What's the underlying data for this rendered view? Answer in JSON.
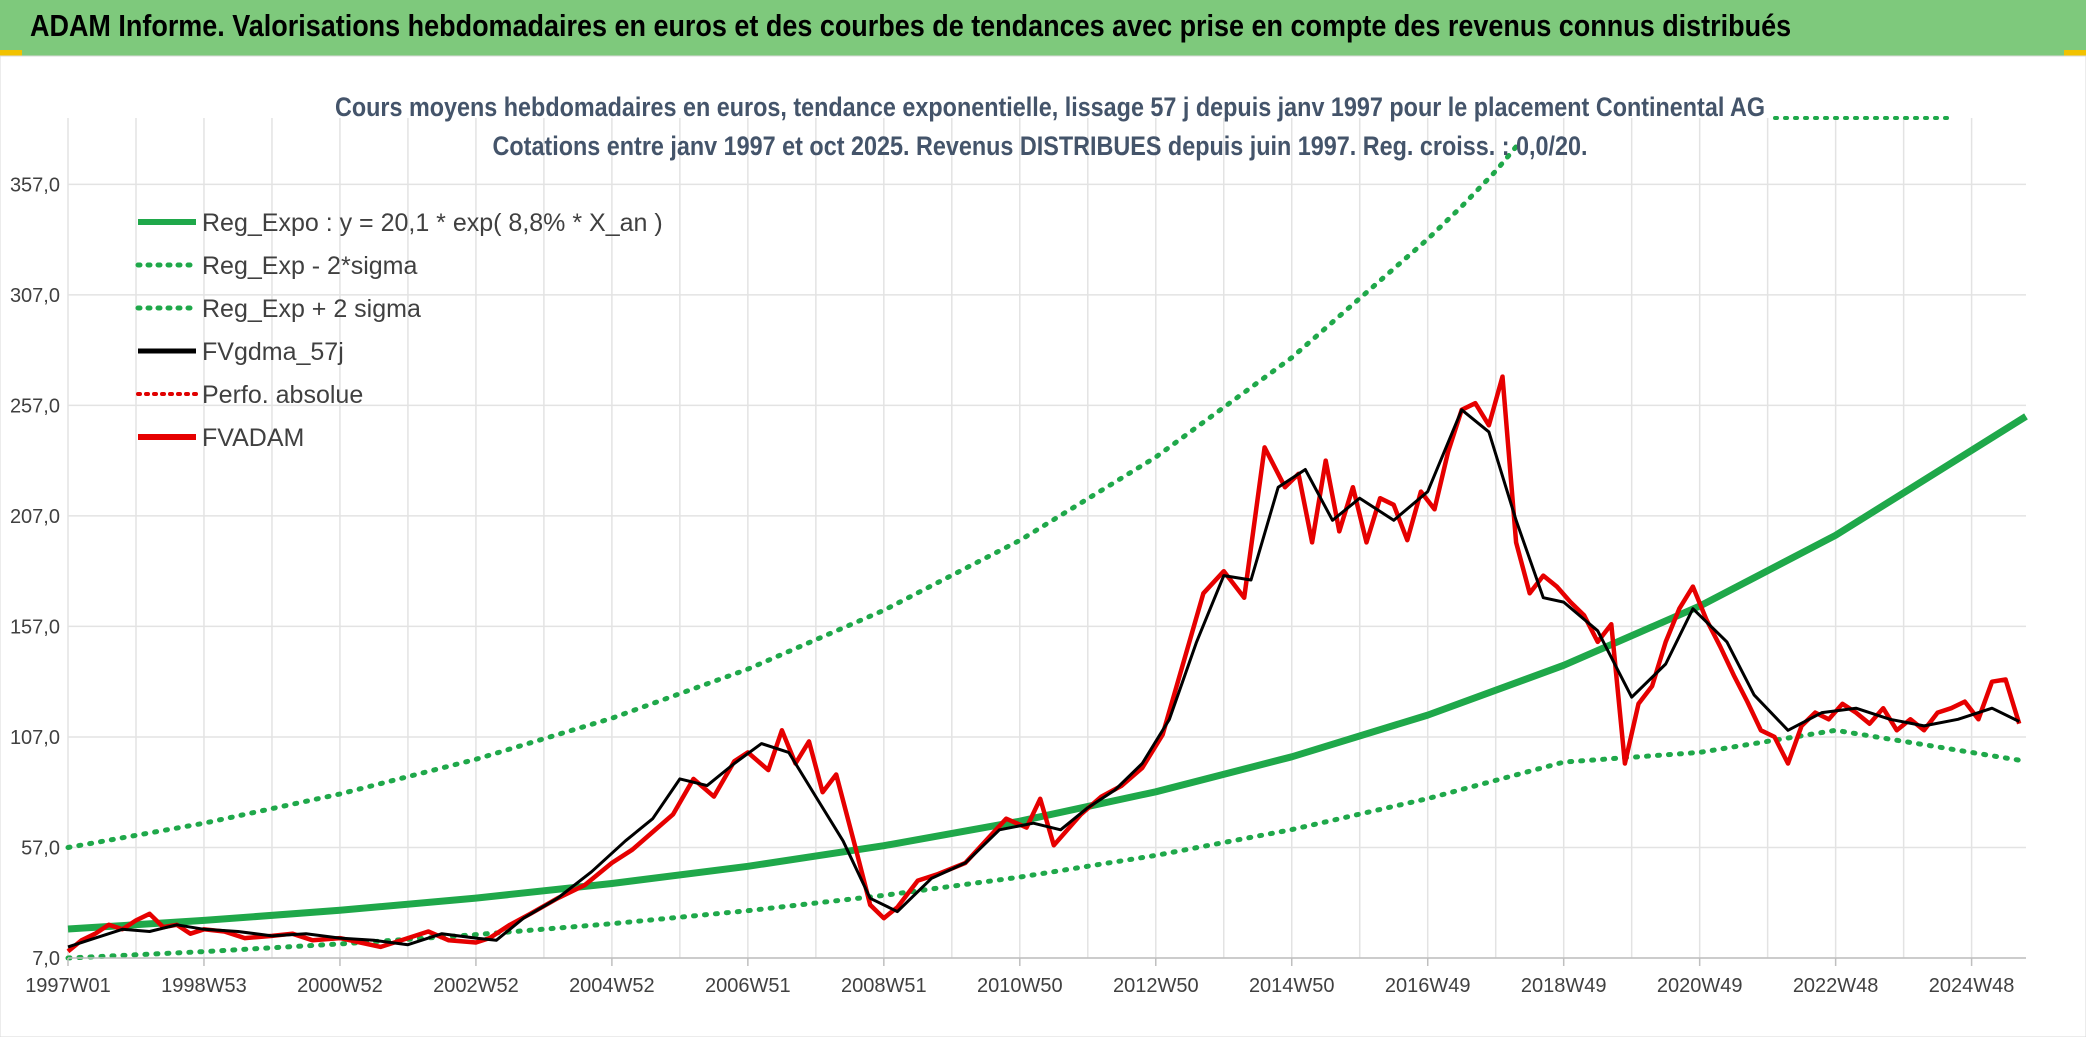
{
  "header": {
    "title": "ADAM Informe. Valorisations hebdomadaires en euros et des courbes de tendances avec prise en compte des revenus connus distribués"
  },
  "chart_data": {
    "type": "line",
    "title": "Cours moyens hebdomadaires en euros, tendance exponentielle, lissage 57 j depuis janv 1997 pour le placement Continental AG",
    "subtitle": "Cotations entre janv 1997 et oct 2025. Revenus DISTRIBUES depuis juin 1997. Reg. croiss. : 0,0/20.",
    "xlabel": "",
    "ylabel": "",
    "xlim": [
      1997.0,
      2025.8
    ],
    "ylim": [
      7,
      387
    ],
    "grid": true,
    "legend_position": "top-left",
    "x_ticks": [
      {
        "x": 1997.0,
        "label": "1997W01"
      },
      {
        "x": 1999.0,
        "label": "1998W53"
      },
      {
        "x": 2001.0,
        "label": "2000W52"
      },
      {
        "x": 2003.0,
        "label": "2002W52"
      },
      {
        "x": 2005.0,
        "label": "2004W52"
      },
      {
        "x": 2007.0,
        "label": "2006W51"
      },
      {
        "x": 2009.0,
        "label": "2008W51"
      },
      {
        "x": 2011.0,
        "label": "2010W50"
      },
      {
        "x": 2013.0,
        "label": "2012W50"
      },
      {
        "x": 2015.0,
        "label": "2014W50"
      },
      {
        "x": 2017.0,
        "label": "2016W49"
      },
      {
        "x": 2019.0,
        "label": "2018W49"
      },
      {
        "x": 2021.0,
        "label": "2020W49"
      },
      {
        "x": 2023.0,
        "label": "2022W48"
      },
      {
        "x": 2025.0,
        "label": "2024W48"
      }
    ],
    "y_ticks": [
      {
        "y": 7,
        "label": "7,0"
      },
      {
        "y": 57,
        "label": "57,0"
      },
      {
        "y": 107,
        "label": "107,0"
      },
      {
        "y": 157,
        "label": "157,0"
      },
      {
        "y": 207,
        "label": "207,0"
      },
      {
        "y": 257,
        "label": "257,0"
      },
      {
        "y": 307,
        "label": "307,0"
      },
      {
        "y": 357,
        "label": "357,0"
      }
    ],
    "legend": [
      {
        "key": "reg",
        "label": "Reg_Expo : y = 20,1 * exp( 8,8% *  X_an )"
      },
      {
        "key": "lo",
        "label": "Reg_Exp - 2*sigma"
      },
      {
        "key": "hi",
        "label": "Reg_Exp + 2 sigma"
      },
      {
        "key": "ma",
        "label": "FVgdma_57j"
      },
      {
        "key": "perf",
        "label": "Perfo. absolue"
      },
      {
        "key": "price",
        "label": "FVADAM"
      }
    ],
    "series": [
      {
        "key": "reg",
        "name": "Reg_Expo : y = 20,1 * exp( 8,8% *  X_an )",
        "color": "#1fa84a",
        "style": "solid",
        "x": [
          1997,
          1999,
          2001,
          2003,
          2005,
          2007,
          2009,
          2011,
          2013,
          2015,
          2017,
          2019,
          2021,
          2023,
          2025.8
        ],
        "y": [
          20.1,
          24.0,
          28.6,
          34.1,
          40.7,
          48.5,
          57.8,
          68.9,
          82.2,
          98.0,
          116.9,
          139.4,
          166.2,
          198.2,
          252.0
        ]
      },
      {
        "key": "lo",
        "name": "Reg_Exp - 2*sigma",
        "color": "#1fa84a",
        "style": "dotted",
        "x": [
          1997,
          1999,
          2001,
          2003,
          2005,
          2007,
          2009,
          2011,
          2013,
          2015,
          2017,
          2019,
          2021,
          2023,
          2025.8
        ],
        "y": [
          7.0,
          9.9,
          13.4,
          17.6,
          22.5,
          28.4,
          35.3,
          43.6,
          53.4,
          65.1,
          79.1,
          95.6,
          100.0,
          110.0,
          96.0
        ]
      },
      {
        "key": "hi",
        "name": "Reg_Exp + 2 sigma",
        "color": "#1fa84a",
        "style": "dotted",
        "x": [
          1997,
          1999,
          2001,
          2003,
          2005,
          2007,
          2009,
          2011,
          2013,
          2015,
          2017,
          2017.5,
          2018.0,
          2018.3
        ],
        "y": [
          57.0,
          68.0,
          81.2,
          96.9,
          115.5,
          137.7,
          164.3,
          195.9,
          233.6,
          278.6,
          332.2,
          347.0,
          363.0,
          374.0
        ]
      },
      {
        "key": "ma",
        "name": "FVgdma_57j",
        "color": "#000000",
        "style": "solid",
        "x": [
          1997.0,
          1997.4,
          1997.8,
          1998.2,
          1998.6,
          1999.0,
          1999.5,
          2000.0,
          2000.5,
          2001.0,
          2001.5,
          2002.0,
          2002.5,
          2003.0,
          2003.3,
          2003.7,
          2004.2,
          2004.7,
          2005.2,
          2005.6,
          2006.0,
          2006.4,
          2006.8,
          2007.2,
          2007.6,
          2008.0,
          2008.4,
          2008.8,
          2009.2,
          2009.7,
          2010.2,
          2010.7,
          2011.2,
          2011.6,
          2012.0,
          2012.4,
          2012.8,
          2013.2,
          2013.6,
          2014.0,
          2014.4,
          2014.8,
          2015.2,
          2015.6,
          2016.0,
          2016.5,
          2017.0,
          2017.5,
          2017.9,
          2018.3,
          2018.7,
          2019.0,
          2019.5,
          2020.0,
          2020.5,
          2020.9,
          2021.4,
          2021.8,
          2022.3,
          2022.8,
          2023.3,
          2023.8,
          2024.3,
          2024.8,
          2025.3,
          2025.7
        ],
        "y": [
          12,
          16,
          20,
          19,
          22,
          20,
          19,
          17,
          18,
          16,
          15,
          13,
          18,
          16,
          15,
          25,
          34,
          46,
          60,
          70,
          88,
          85,
          95,
          104,
          100,
          80,
          60,
          34,
          28,
          43,
          50,
          65,
          68,
          65,
          75,
          83,
          95,
          115,
          150,
          180,
          178,
          220,
          228,
          205,
          215,
          205,
          218,
          255,
          245,
          205,
          170,
          168,
          155,
          125,
          140,
          165,
          150,
          126,
          110,
          118,
          120,
          115,
          112,
          115,
          120,
          114
        ]
      },
      {
        "key": "perf",
        "name": "Perfo. absolue",
        "color": "#e00000",
        "style": "dotted",
        "x": [],
        "y": []
      },
      {
        "key": "price",
        "name": "FVADAM",
        "color": "#e60000",
        "style": "solid",
        "x": [
          1997.0,
          1997.2,
          1997.4,
          1997.6,
          1997.8,
          1998.0,
          1998.2,
          1998.4,
          1998.6,
          1998.8,
          1999.0,
          1999.3,
          1999.6,
          2000.0,
          2000.3,
          2000.6,
          2001.0,
          2001.3,
          2001.6,
          2002.0,
          2002.3,
          2002.6,
          2003.0,
          2003.2,
          2003.5,
          2003.8,
          2004.2,
          2004.6,
          2005.0,
          2005.3,
          2005.6,
          2005.9,
          2006.2,
          2006.5,
          2006.8,
          2007.0,
          2007.3,
          2007.5,
          2007.7,
          2007.9,
          2008.1,
          2008.3,
          2008.6,
          2008.8,
          2009.0,
          2009.2,
          2009.5,
          2009.8,
          2010.2,
          2010.5,
          2010.8,
          2011.1,
          2011.3,
          2011.5,
          2011.7,
          2011.9,
          2012.2,
          2012.5,
          2012.8,
          2013.1,
          2013.4,
          2013.7,
          2014.0,
          2014.3,
          2014.6,
          2014.9,
          2015.1,
          2015.3,
          2015.5,
          2015.7,
          2015.9,
          2016.1,
          2016.3,
          2016.5,
          2016.7,
          2016.9,
          2017.1,
          2017.3,
          2017.5,
          2017.7,
          2017.9,
          2018.1,
          2018.3,
          2018.5,
          2018.7,
          2018.9,
          2019.1,
          2019.3,
          2019.5,
          2019.7,
          2019.9,
          2020.1,
          2020.3,
          2020.5,
          2020.7,
          2020.9,
          2021.1,
          2021.3,
          2021.5,
          2021.7,
          2021.9,
          2022.1,
          2022.3,
          2022.5,
          2022.7,
          2022.9,
          2023.1,
          2023.3,
          2023.5,
          2023.7,
          2023.9,
          2024.1,
          2024.3,
          2024.5,
          2024.7,
          2024.9,
          2025.1,
          2025.3,
          2025.5,
          2025.7
        ],
        "y": [
          10,
          15,
          18,
          22,
          20,
          24,
          27,
          21,
          22,
          18,
          20,
          19,
          16,
          17,
          18,
          15,
          16,
          14,
          12,
          16,
          19,
          15,
          14,
          16,
          22,
          27,
          34,
          40,
          50,
          56,
          64,
          72,
          88,
          80,
          96,
          100,
          92,
          110,
          95,
          105,
          82,
          90,
          55,
          31,
          25,
          30,
          42,
          45,
          50,
          60,
          70,
          66,
          79,
          58,
          65,
          72,
          80,
          85,
          93,
          108,
          140,
          172,
          182,
          170,
          238,
          220,
          226,
          195,
          232,
          200,
          220,
          195,
          215,
          212,
          196,
          218,
          210,
          236,
          255,
          258,
          248,
          270,
          195,
          172,
          180,
          175,
          168,
          162,
          150,
          158,
          95,
          122,
          130,
          150,
          165,
          175,
          160,
          148,
          135,
          123,
          110,
          107,
          95,
          112,
          118,
          115,
          122,
          118,
          113,
          120,
          110,
          115,
          110,
          118,
          120,
          123,
          115,
          132,
          133,
          113
        ]
      }
    ]
  }
}
